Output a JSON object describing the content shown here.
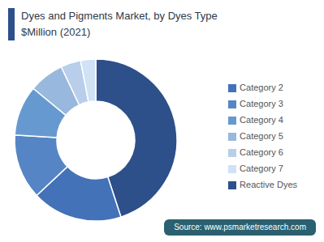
{
  "chart_data": {
    "type": "donut",
    "title": "Dyes and Pigments Market, by Dyes Type",
    "subtitle": "$Million (2021)",
    "categories": [
      "Reactive Dyes",
      "Category 2",
      "Category 3",
      "Category 4",
      "Category 5",
      "Category 6",
      "Category 7"
    ],
    "values": [
      45,
      18,
      13,
      10,
      7,
      4,
      3
    ],
    "colors": [
      "#2d4f8a",
      "#4472b8",
      "#5585c5",
      "#6699d0",
      "#99b8dd",
      "#b8ceea",
      "#d0e2f4"
    ],
    "legend": "right",
    "annotations": [
      "Source: www.psmarketresearch.com"
    ]
  }
}
